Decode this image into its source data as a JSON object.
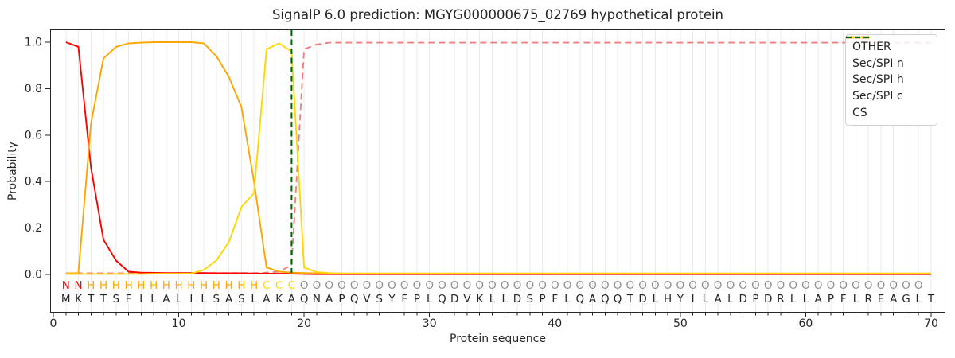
{
  "chart_data": {
    "type": "line",
    "title": "SignalP 6.0 prediction: MGYG000000675_02769 hypothetical protein",
    "xlabel": "Protein sequence",
    "ylabel": "Probability",
    "x_ticks": [
      0,
      10,
      20,
      30,
      40,
      50,
      60,
      70
    ],
    "y_ticks": [
      0.0,
      0.2,
      0.4,
      0.6,
      0.8,
      1.0
    ],
    "xlim": [
      -0.3,
      71.4
    ],
    "ylim": [
      -0.165,
      1.055
    ],
    "grid": "vertical-per-residue",
    "legend_position": "upper right",
    "x": [
      1,
      2,
      3,
      4,
      5,
      6,
      7,
      8,
      9,
      10,
      11,
      12,
      13,
      14,
      15,
      16,
      17,
      18,
      19,
      20,
      21,
      22,
      23,
      24,
      25,
      26,
      27,
      28,
      29,
      30,
      31,
      32,
      33,
      34,
      35,
      36,
      37,
      38,
      39,
      40,
      41,
      42,
      43,
      44,
      45,
      46,
      47,
      48,
      49,
      50,
      51,
      52,
      53,
      54,
      55,
      56,
      57,
      58,
      59,
      60,
      61,
      62,
      63,
      64,
      65,
      66,
      67,
      68,
      69,
      70
    ],
    "series": [
      {
        "name": "OTHER",
        "color": "#f08080",
        "style": "dashed",
        "values": [
          0.005,
          0.005,
          0.005,
          0.005,
          0.005,
          0.005,
          0.005,
          0.005,
          0.005,
          0.005,
          0.006,
          0.006,
          0.006,
          0.006,
          0.006,
          0.006,
          0.008,
          0.012,
          0.04,
          0.97,
          0.99,
          0.998,
          0.998,
          0.998,
          0.998,
          0.998,
          0.998,
          0.998,
          0.998,
          0.998,
          0.998,
          0.998,
          0.998,
          0.998,
          0.998,
          0.998,
          0.998,
          0.998,
          0.998,
          0.998,
          0.998,
          0.998,
          0.998,
          0.998,
          0.998,
          0.998,
          0.998,
          0.998,
          0.998,
          0.998,
          0.998,
          0.998,
          0.998,
          0.998,
          0.998,
          0.998,
          0.998,
          0.998,
          0.998,
          0.998,
          0.998,
          0.998,
          0.998,
          0.998,
          0.998,
          0.998,
          0.998,
          0.998,
          0.998,
          0.998
        ]
      },
      {
        "name": "Sec/SPI n",
        "color": "#ff0000",
        "style": "solid",
        "values": [
          1.0,
          0.98,
          0.46,
          0.15,
          0.06,
          0.012,
          0.008,
          0.007,
          0.006,
          0.006,
          0.006,
          0.006,
          0.005,
          0.005,
          0.005,
          0.004,
          0.004,
          0.003,
          0.003,
          0.002,
          0.001,
          0.001,
          0.001,
          0.001,
          0.001,
          0.001,
          0.001,
          0.001,
          0.001,
          0.001,
          0.001,
          0.001,
          0.001,
          0.001,
          0.001,
          0.001,
          0.001,
          0.001,
          0.001,
          0.001,
          0.001,
          0.001,
          0.001,
          0.001,
          0.001,
          0.001,
          0.001,
          0.001,
          0.001,
          0.001,
          0.001,
          0.001,
          0.001,
          0.001,
          0.001,
          0.001,
          0.001,
          0.001,
          0.001,
          0.001,
          0.001,
          0.001,
          0.001,
          0.001,
          0.001,
          0.001,
          0.001,
          0.001,
          0.001,
          0.001
        ]
      },
      {
        "name": "Sec/SPI h",
        "color": "#ffa500",
        "style": "solid",
        "values": [
          0.004,
          0.006,
          0.65,
          0.93,
          0.98,
          0.995,
          0.998,
          1.0,
          1.0,
          1.0,
          1.0,
          0.995,
          0.94,
          0.85,
          0.72,
          0.4,
          0.03,
          0.012,
          0.008,
          0.006,
          0.005,
          0.005,
          0.004,
          0.004,
          0.004,
          0.004,
          0.004,
          0.004,
          0.004,
          0.004,
          0.004,
          0.004,
          0.004,
          0.004,
          0.004,
          0.004,
          0.004,
          0.004,
          0.004,
          0.004,
          0.004,
          0.004,
          0.004,
          0.004,
          0.004,
          0.004,
          0.004,
          0.004,
          0.004,
          0.004,
          0.004,
          0.004,
          0.004,
          0.004,
          0.004,
          0.004,
          0.004,
          0.004,
          0.004,
          0.004,
          0.004,
          0.004,
          0.004,
          0.004,
          0.004,
          0.004,
          0.004,
          0.004,
          0.004,
          0.004
        ]
      },
      {
        "name": "Sec/SPI c",
        "color": "#ffd700",
        "style": "solid",
        "values": [
          0.002,
          0.002,
          0.002,
          0.002,
          0.002,
          0.002,
          0.002,
          0.003,
          0.003,
          0.003,
          0.004,
          0.02,
          0.06,
          0.14,
          0.29,
          0.35,
          0.97,
          0.995,
          0.96,
          0.03,
          0.01,
          0.006,
          0.004,
          0.004,
          0.004,
          0.004,
          0.004,
          0.004,
          0.004,
          0.004,
          0.004,
          0.004,
          0.004,
          0.004,
          0.004,
          0.004,
          0.004,
          0.004,
          0.004,
          0.004,
          0.004,
          0.004,
          0.004,
          0.004,
          0.004,
          0.004,
          0.004,
          0.004,
          0.004,
          0.004,
          0.004,
          0.004,
          0.004,
          0.004,
          0.004,
          0.004,
          0.004,
          0.004,
          0.004,
          0.004,
          0.004,
          0.004,
          0.004,
          0.004,
          0.004,
          0.004,
          0.004,
          0.004,
          0.004,
          0.004
        ]
      }
    ],
    "cs_line": {
      "name": "CS",
      "position": 19,
      "color": "#006400",
      "style": "dashed"
    },
    "sequence": "MKTTSFILALILSASLAKAQNAPQVSYFPLQDVKLLDSPFLQAQQTDLHYILALDPDRLLAPFLREAGLT",
    "regions": "NNHHHHHHHHHHHHHHCCCOOOOOOOOOOOOOOOOOOOOOOOOOOOOOOOOOOOOOOOOOOOOOOOOOO",
    "region_colors": {
      "N": "#ff0000",
      "H": "#ffa500",
      "C": "#ffd700",
      "O": "#8f8f8f"
    },
    "sequence_color": "#262626"
  }
}
